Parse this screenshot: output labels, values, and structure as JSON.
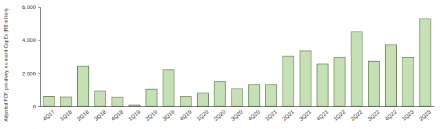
{
  "chart_data": {
    "type": "bar",
    "y_label": "Adjusted FCF, pre-divvy, ex-maint CapEx (R$ million)",
    "categories": [
      "4Q17",
      "1Q18",
      "2Q18",
      "3Q18",
      "4Q18",
      "1Q19",
      "2Q19",
      "3Q19",
      "4Q19",
      "1Q20",
      "2Q20",
      "3Q20",
      "4Q20",
      "1Q21",
      "2Q21",
      "3Q21",
      "4Q21",
      "1Q22",
      "2Q22",
      "3Q22",
      "4Q22",
      "1Q23",
      "2Q23"
    ],
    "values": [
      600,
      570,
      2430,
      920,
      560,
      80,
      1030,
      2200,
      590,
      800,
      1500,
      1060,
      1300,
      1300,
      3020,
      3350,
      2560,
      2950,
      4500,
      2720,
      3720,
      2960,
      5280
    ],
    "color": "#c5e0b4",
    "ylim": [
      0,
      6000
    ],
    "yticks": [
      0,
      {
        "value": 2000,
        "label": "2,000"
      },
      {
        "value": 4000,
        "label": "4,000"
      },
      {
        "value": 6000,
        "label": "6,000"
      }
    ],
    "grid": false
  }
}
